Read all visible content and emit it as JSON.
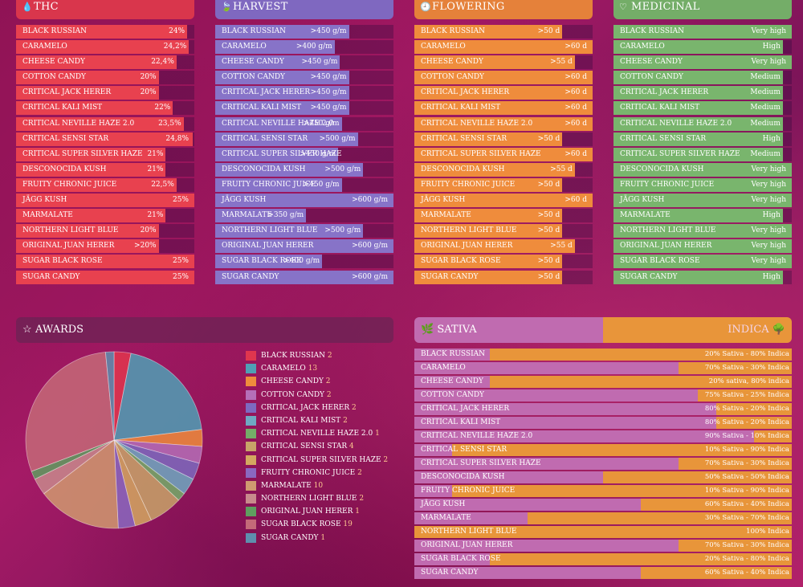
{
  "colors": {
    "thc": "#e8414f",
    "harvest": "#8773c8",
    "flowering": "#ef8c3c",
    "medicinal": "#79b56d",
    "sativa": "#c06bb0",
    "indica": "#e8953a"
  },
  "panels": [
    {
      "key": "thc",
      "title": "THC",
      "icon": "drop-icon",
      "glyph": "💧",
      "color": "#e8414f",
      "headColor": "#d9364c",
      "rows": [
        {
          "label": "BLACK RUSSIAN",
          "text": "24%",
          "fill": 0.96
        },
        {
          "label": "CARAMELO",
          "text": "24,2%",
          "fill": 0.97
        },
        {
          "label": "CHEESE CANDY",
          "text": "22,4%",
          "fill": 0.9
        },
        {
          "label": "COTTON CANDY",
          "text": "20%",
          "fill": 0.8
        },
        {
          "label": "CRITICAL JACK HERER",
          "text": "20%",
          "fill": 0.8
        },
        {
          "label": "CRITICAL KALI MIST",
          "text": "22%",
          "fill": 0.88
        },
        {
          "label": "CRITICAL NEVILLE HAZE 2.0",
          "text": "23,5%",
          "fill": 0.94
        },
        {
          "label": "CRITICAL SENSI STAR",
          "text": "24,8%",
          "fill": 0.99
        },
        {
          "label": "CRITICAL SUPER SILVER HAZE",
          "text": "21%",
          "fill": 0.84
        },
        {
          "label": "DESCONOCIDA KUSH",
          "text": "21%",
          "fill": 0.84
        },
        {
          "label": "FRUITY CHRONIC JUICE",
          "text": "22,5%",
          "fill": 0.9
        },
        {
          "label": "JÄGG KUSH",
          "text": "25%",
          "fill": 1.0
        },
        {
          "label": "MARMALATE",
          "text": "21%",
          "fill": 0.84
        },
        {
          "label": "NORTHERN LIGHT BLUE",
          "text": "20%",
          "fill": 0.8
        },
        {
          "label": "ORIGINAL JUAN HERER",
          "text": ">20%",
          "fill": 0.8
        },
        {
          "label": "SUGAR BLACK ROSE",
          "text": "25%",
          "fill": 1.0
        },
        {
          "label": "SUGAR CANDY",
          "text": "25%",
          "fill": 1.0
        }
      ]
    },
    {
      "key": "harvest",
      "title": "HARVEST",
      "icon": "leaf-icon",
      "glyph": "🍃",
      "color": "#8773c8",
      "headColor": "#7f68c0",
      "rows": [
        {
          "label": "BLACK RUSSIAN",
          "text": ">450 g/m",
          "fill": 0.75
        },
        {
          "label": "CARAMELO",
          "text": ">400 g/m",
          "fill": 0.67
        },
        {
          "label": "CHEESE CANDY",
          "text": ">450 g/m",
          "fill": 0.7
        },
        {
          "label": "COTTON CANDY",
          "text": ">450 g/m",
          "fill": 0.75
        },
        {
          "label": "CRITICAL JACK HERER",
          "text": ">450 g/m",
          "fill": 0.75
        },
        {
          "label": "CRITICAL KALI MIST",
          "text": ">450 g/m",
          "fill": 0.75
        },
        {
          "label": "CRITICAL NEVILLE HAZE 2.0",
          "text": ">450 g/m",
          "fill": 0.71
        },
        {
          "label": "CRITICAL SENSI STAR",
          "text": ">500 g/m",
          "fill": 0.8
        },
        {
          "label": "CRITICAL SUPER SILVER HAZE",
          "text": ">450 g/m",
          "fill": 0.69
        },
        {
          "label": "DESCONOCIDA KUSH",
          "text": ">500 g/m",
          "fill": 0.83
        },
        {
          "label": "FRUITY CHRONIC JUICE",
          "text": ">450 g/m",
          "fill": 0.71
        },
        {
          "label": "JÄGG KUSH",
          "text": ">600 g/m",
          "fill": 1.0
        },
        {
          "label": "MARMALATE",
          "text": ">350 g/m",
          "fill": 0.51
        },
        {
          "label": "NORTHERN LIGHT BLUE",
          "text": ">500 g/m",
          "fill": 0.83
        },
        {
          "label": "ORIGINAL JUAN HERER",
          "text": ">600 g/m",
          "fill": 1.0
        },
        {
          "label": "SUGAR BLACK ROSE",
          "text": ">400 g/m",
          "fill": 0.6
        },
        {
          "label": "SUGAR CANDY",
          "text": ">600 g/m",
          "fill": 1.0
        }
      ]
    },
    {
      "key": "flowering",
      "title": "FLOWERING",
      "icon": "clock-icon",
      "glyph": "🕘",
      "color": "#ef8c3c",
      "headColor": "#e5813a",
      "rows": [
        {
          "label": "BLACK RUSSIAN",
          "text": ">50 d",
          "fill": 0.83
        },
        {
          "label": "CARAMELO",
          "text": ">60 d",
          "fill": 1.0
        },
        {
          "label": "CHEESE CANDY",
          "text": ">55 d",
          "fill": 0.9
        },
        {
          "label": "COTTON CANDY",
          "text": ">60 d",
          "fill": 1.0
        },
        {
          "label": "CRITICAL JACK HERER",
          "text": ">60 d",
          "fill": 1.0
        },
        {
          "label": "CRITICAL KALI MIST",
          "text": ">60 d",
          "fill": 1.0
        },
        {
          "label": "CRITICAL NEVILLE HAZE 2.0",
          "text": ">60 d",
          "fill": 1.0
        },
        {
          "label": "CRITICAL SENSI STAR",
          "text": ">50 d",
          "fill": 0.83
        },
        {
          "label": "CRITICAL SUPER SILVER HAZE",
          "text": ">60 d",
          "fill": 1.0
        },
        {
          "label": "DESCONOCIDA KUSH",
          "text": ">55 d",
          "fill": 0.9
        },
        {
          "label": "FRUITY CHRONIC JUICE",
          "text": ">50 d",
          "fill": 0.83
        },
        {
          "label": "JÄGG KUSH",
          "text": ">60 d",
          "fill": 1.0
        },
        {
          "label": "MARMALATE",
          "text": ">50 d",
          "fill": 0.83
        },
        {
          "label": "NORTHERN LIGHT BLUE",
          "text": ">50 d",
          "fill": 0.83
        },
        {
          "label": "ORIGINAL JUAN HERER",
          "text": ">55 d",
          "fill": 0.9
        },
        {
          "label": "SUGAR BLACK ROSE",
          "text": ">50 d",
          "fill": 0.83
        },
        {
          "label": "SUGAR CANDY",
          "text": ">50 d",
          "fill": 0.83
        }
      ]
    },
    {
      "key": "medicinal",
      "title": "MEDICINAL",
      "icon": "heart-icon",
      "glyph": "♡",
      "color": "#79b56d",
      "headColor": "#74ad68",
      "rows": [
        {
          "label": "BLACK RUSSIAN",
          "text": "Very high",
          "fill": 1.0
        },
        {
          "label": "CARAMELO",
          "text": "High",
          "fill": 0.95
        },
        {
          "label": "CHEESE CANDY",
          "text": "Very high",
          "fill": 1.0
        },
        {
          "label": "COTTON CANDY",
          "text": "Medium",
          "fill": 0.95
        },
        {
          "label": "CRITICAL JACK HERER",
          "text": "Medium",
          "fill": 0.95
        },
        {
          "label": "CRITICAL KALI MIST",
          "text": "Medium",
          "fill": 0.95
        },
        {
          "label": "CRITICAL NEVILLE HAZE 2.0",
          "text": "Medium",
          "fill": 0.95
        },
        {
          "label": "CRITICAL SENSI STAR",
          "text": "High",
          "fill": 0.95
        },
        {
          "label": "CRITICAL SUPER SILVER HAZE",
          "text": "Medium",
          "fill": 0.95
        },
        {
          "label": "DESCONOCIDA KUSH",
          "text": "Very high",
          "fill": 1.0
        },
        {
          "label": "FRUITY CHRONIC JUICE",
          "text": "Very high",
          "fill": 1.0
        },
        {
          "label": "JÄGG KUSH",
          "text": "Very high",
          "fill": 1.0
        },
        {
          "label": "MARMALATE",
          "text": "High",
          "fill": 0.95
        },
        {
          "label": "NORTHERN LIGHT BLUE",
          "text": "Very high",
          "fill": 1.0
        },
        {
          "label": "ORIGINAL JUAN HERER",
          "text": "Very high",
          "fill": 1.0
        },
        {
          "label": "SUGAR BLACK ROSE",
          "text": "Very high",
          "fill": 1.0
        },
        {
          "label": "SUGAR CANDY",
          "text": "High",
          "fill": 0.95
        }
      ]
    }
  ],
  "awards": {
    "title": "AWARDS",
    "icon": "star-icon",
    "glyph": "☆"
  },
  "sativa_indica": {
    "left_title": "SATIVA",
    "right_title": "INDICA",
    "left_icon": "sativa-leaf-icon",
    "right_icon": "tree-icon",
    "rows": [
      {
        "label": "BLACK RUSSIAN",
        "text": "20% Sativa - 80% Indica",
        "sativa": 20
      },
      {
        "label": "CARAMELO",
        "text": "70% Sativa - 30% Indica",
        "sativa": 70
      },
      {
        "label": "CHEESE CANDY",
        "text": "20% sativa, 80% indica",
        "sativa": 20
      },
      {
        "label": "COTTON CANDY",
        "text": "75% Sativa - 25% Indica",
        "sativa": 75
      },
      {
        "label": "CRITICAL JACK HERER",
        "text": "80% Sativa - 20% Indica",
        "sativa": 80
      },
      {
        "label": "CRITICAL KALI MIST",
        "text": "80% Sativa - 20% Indica",
        "sativa": 80
      },
      {
        "label": "CRITICAL NEVILLE HAZE 2.0",
        "text": "90% Sativa - 10% Indica",
        "sativa": 90
      },
      {
        "label": "CRITICAL SENSI STAR",
        "text": "10% Sativa - 90% Indica",
        "sativa": 10
      },
      {
        "label": "CRITICAL SUPER SILVER HAZE",
        "text": "70% Sativa - 30% Indica",
        "sativa": 70
      },
      {
        "label": "DESCONOCIDA KUSH",
        "text": "50% Sativa - 50% Indica",
        "sativa": 50
      },
      {
        "label": "FRUITY CHRONIC JUICE",
        "text": "10% Sativa - 90% Indica",
        "sativa": 10
      },
      {
        "label": "JÄGG KUSH",
        "text": "60% Sativa - 40% Indica",
        "sativa": 60
      },
      {
        "label": "MARMALATE",
        "text": "30% Sativa - 70% Indica",
        "sativa": 30
      },
      {
        "label": "NORTHERN LIGHT BLUE",
        "text": "100% Indica",
        "sativa": 0
      },
      {
        "label": "ORIGINAL JUAN HERER",
        "text": "70% Sativa - 30% Indica",
        "sativa": 70
      },
      {
        "label": "SUGAR BLACK ROSE",
        "text": "20% Sativa - 80% Indica",
        "sativa": 20
      },
      {
        "label": "SUGAR CANDY",
        "text": "60% Sativa - 40% Indica",
        "sativa": 60
      }
    ]
  },
  "chart_data": [
    {
      "type": "pie",
      "title": "AWARDS",
      "categories": [
        "BLACK RUSSIAN",
        "CARAMELO",
        "CHEESE CANDY",
        "COTTON CANDY",
        "CRITICAL JACK HERER",
        "CRITICAL KALI MIST",
        "CRITICAL NEVILLE HAZE 2.0",
        "CRITICAL SENSI STAR",
        "CRITICAL SUPER SILVER HAZE",
        "FRUITY CHRONIC JUICE",
        "MARMALATE",
        "NORTHERN LIGHT BLUE",
        "ORIGINAL JUAN HERER",
        "SUGAR BLACK ROSE",
        "SUGAR CANDY"
      ],
      "values": [
        2,
        13,
        2,
        2,
        2,
        2,
        1,
        4,
        2,
        2,
        10,
        2,
        1,
        19,
        1
      ],
      "colors": [
        "#e0364e",
        "#4fa0b5",
        "#ef8c3c",
        "#b56fb8",
        "#7d6ac0",
        "#6fa9c2",
        "#74ad68",
        "#c8a468",
        "#d4a860",
        "#8a68c0",
        "#d09a70",
        "#c88a8c",
        "#5f9e5f",
        "#c46a78",
        "#5e8fae"
      ],
      "legend": "right"
    }
  ]
}
